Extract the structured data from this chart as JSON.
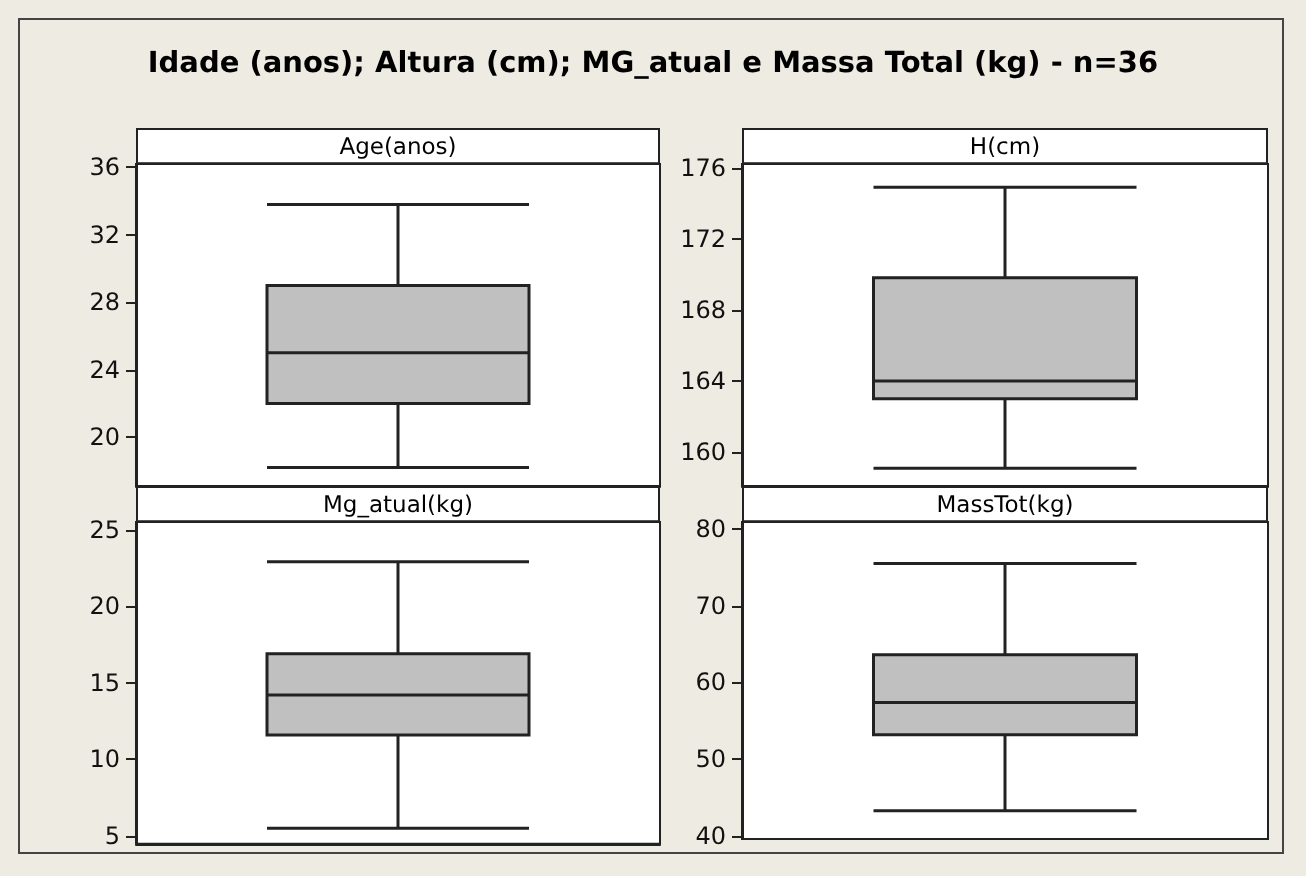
{
  "chart_data": [
    {
      "type": "box",
      "title": "Age(anos)",
      "annotations": [
        "Idade (anos); Altura (cm); MG_atual e Massa Total (kg) - n=36"
      ],
      "categories": [
        null
      ],
      "series": [
        {
          "color": "#c0c0c0",
          "boxes": [
            {
              "low": 18.2,
              "q1": 22.0,
              "median": 25.0,
              "q3": 29.0,
              "high": 33.8
            }
          ]
        }
      ],
      "ylim": [
        17.1,
        36.2
      ],
      "yticks": [
        20,
        24,
        28,
        32,
        36
      ],
      "grid": false,
      "tick_labels": "y"
    },
    {
      "type": "box",
      "title": "H(cm)",
      "categories": [
        null
      ],
      "series": [
        {
          "color": "#c0c0c0",
          "boxes": [
            {
              "low": 159.1,
              "q1": 163.0,
              "median": 164.0,
              "q3": 169.8,
              "high": 174.9
            }
          ]
        }
      ],
      "ylim": [
        158.1,
        176.2
      ],
      "yticks": [
        160,
        164,
        168,
        172,
        176
      ],
      "grid": false,
      "tick_labels": "y"
    },
    {
      "type": "box",
      "title": "Mg_atual(kg)",
      "categories": [
        null
      ],
      "series": [
        {
          "color": "#c0c0c0",
          "boxes": [
            {
              "low": 5.5,
              "q1": 11.6,
              "median": 14.2,
              "q3": 16.9,
              "high": 22.9
            }
          ]
        }
      ],
      "ylim": [
        4.5,
        25.5
      ],
      "yticks": [
        5,
        10,
        15,
        20,
        25
      ],
      "grid": false,
      "tick_labels": "y"
    },
    {
      "type": "box",
      "title": "MassTot(kg)",
      "categories": [
        null
      ],
      "series": [
        {
          "color": "#c0c0c0",
          "boxes": [
            {
              "low": 43.3,
              "q1": 53.2,
              "median": 57.4,
              "q3": 63.6,
              "high": 75.5
            }
          ]
        }
      ],
      "ylim": [
        39.6,
        80.9
      ],
      "yticks": [
        40,
        50,
        60,
        70,
        80
      ],
      "grid": false,
      "tick_labels": "y"
    }
  ]
}
